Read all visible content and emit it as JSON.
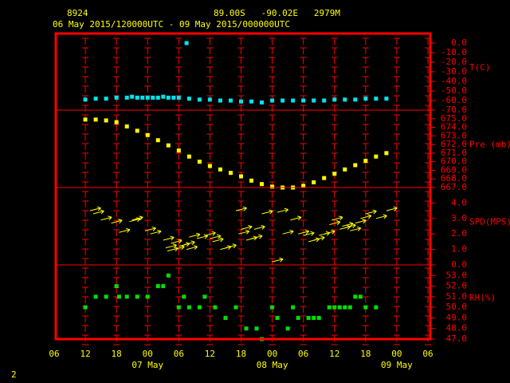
{
  "header": {
    "station": "8924",
    "location": "89.00S   -90.02E   2979M",
    "period": "06 May 2015/120000UTC - 09 May 2015/000000UTC",
    "page": "2"
  },
  "x_axis": {
    "xlim": [
      0,
      72
    ],
    "xticks": [
      {
        "value": 0,
        "label": "06"
      },
      {
        "value": 6,
        "label": "12"
      },
      {
        "value": 12,
        "label": "18"
      },
      {
        "value": 18,
        "label": "00"
      },
      {
        "value": 24,
        "label": "06"
      },
      {
        "value": 30,
        "label": "12"
      },
      {
        "value": 36,
        "label": "18"
      },
      {
        "value": 42,
        "label": "00"
      },
      {
        "value": 48,
        "label": "06"
      },
      {
        "value": 54,
        "label": "12"
      },
      {
        "value": 60,
        "label": "18"
      },
      {
        "value": 66,
        "label": "00"
      },
      {
        "value": 72,
        "label": "06"
      }
    ],
    "dates": [
      {
        "value": 18,
        "label": "07 May"
      },
      {
        "value": 42,
        "label": "08 May"
      },
      {
        "value": 66,
        "label": "09 May"
      }
    ]
  },
  "chart_data": [
    {
      "type": "scatter",
      "name": "T(C)",
      "color": "#00e5ee",
      "x": [
        6,
        8,
        10,
        12,
        14,
        15,
        16,
        17,
        18,
        19,
        20,
        21,
        22,
        23,
        24,
        25.5,
        26,
        28,
        30,
        32,
        34,
        36,
        38,
        40,
        42,
        44,
        46,
        48,
        50,
        52,
        54,
        56,
        58,
        60,
        62,
        64
      ],
      "values": [
        -59,
        -58,
        -58,
        -57,
        -57,
        -56,
        -57,
        -57,
        -57,
        -57,
        -57,
        -56,
        -57,
        -57,
        -57,
        0,
        -58,
        -59,
        -59,
        -60,
        -60,
        -61,
        -61,
        -62,
        -60,
        -60,
        -60,
        -60,
        -60,
        -60,
        -59,
        -59,
        -59,
        -58,
        -58,
        -58
      ],
      "ylim": [
        -70,
        10
      ],
      "yticks": [
        {
          "value": 0,
          "label": "0.0"
        },
        {
          "value": -10,
          "label": "-10.0"
        },
        {
          "value": -20,
          "label": "-20.0"
        },
        {
          "value": -30,
          "label": "-30.0"
        },
        {
          "value": -40,
          "label": "-40.0"
        },
        {
          "value": -50,
          "label": "-50.0"
        },
        {
          "value": -60,
          "label": "-60.0"
        },
        {
          "value": -70,
          "label": "-70.0"
        }
      ]
    },
    {
      "type": "scatter",
      "name": "Pre (mb)",
      "color": "#ffff00",
      "x": [
        6,
        8,
        10,
        12,
        14,
        16,
        18,
        20,
        22,
        24,
        26,
        28,
        30,
        32,
        34,
        36,
        38,
        40,
        42,
        44,
        46,
        48,
        50,
        52,
        54,
        56,
        58,
        60,
        62,
        64
      ],
      "values": [
        674.9,
        674.9,
        674.8,
        674.6,
        674.1,
        673.6,
        673.1,
        672.5,
        671.9,
        671.3,
        670.6,
        670.0,
        669.5,
        669.1,
        668.7,
        668.3,
        667.8,
        667.4,
        667.1,
        667.0,
        667.0,
        667.2,
        667.6,
        668.1,
        668.6,
        669.1,
        669.6,
        670.1,
        670.6,
        671.0
      ],
      "ylim": [
        667,
        676
      ],
      "yticks": [
        {
          "value": 675,
          "label": "675.0"
        },
        {
          "value": 674,
          "label": "674.0"
        },
        {
          "value": 673,
          "label": "673.0"
        },
        {
          "value": 672,
          "label": "672.0"
        },
        {
          "value": 671,
          "label": "671.0"
        },
        {
          "value": 670,
          "label": "670.0"
        },
        {
          "value": 669,
          "label": "669.0"
        },
        {
          "value": 668,
          "label": "668.0"
        },
        {
          "value": 667,
          "label": "667.0"
        }
      ]
    },
    {
      "type": "vector",
      "name": "SPD(MPS)",
      "color": "#ffff00",
      "x": [
        6.9,
        7.5,
        9,
        11,
        12.5,
        14.5,
        15,
        17.5,
        18.5,
        21,
        21.5,
        21.8,
        22.5,
        23,
        24,
        25,
        25.5,
        26,
        27.5,
        29,
        30,
        30.5,
        32,
        33,
        35,
        35.5,
        36,
        37,
        38,
        38.5,
        40,
        42,
        43,
        44,
        45.5,
        47,
        48,
        49,
        50,
        51,
        52,
        53,
        53.5,
        55,
        55.5,
        56,
        57,
        58,
        59,
        60,
        62,
        64
      ],
      "values": [
        3.5,
        3.3,
        2.9,
        2.7,
        2.1,
        2.8,
        2.9,
        2.2,
        2.0,
        1.6,
        1.1,
        0.9,
        1.4,
        1.0,
        1.2,
        1.3,
        1.0,
        1.8,
        1.7,
        1.9,
        1.7,
        1.5,
        1.0,
        1.1,
        3.5,
        2.0,
        2.3,
        1.6,
        1.7,
        2.3,
        3.3,
        0.2,
        3.4,
        2.0,
        2.9,
        2.0,
        1.9,
        1.5,
        1.6,
        1.9,
        2.0,
        2.6,
        2.9,
        2.3,
        2.5,
        2.4,
        2.2,
        2.7,
        3.0,
        3.3,
        3.0,
        3.5
      ],
      "ylim": [
        0,
        5
      ],
      "yticks": [
        {
          "value": 4,
          "label": "4.0"
        },
        {
          "value": 3,
          "label": "3.0"
        },
        {
          "value": 2,
          "label": "2.0"
        },
        {
          "value": 1,
          "label": "1.0"
        },
        {
          "value": 0,
          "label": "0.0"
        }
      ]
    },
    {
      "type": "scatter",
      "name": "RH(%)",
      "color": "#00e000",
      "x": [
        6,
        8,
        10,
        12,
        12.5,
        14,
        16,
        18,
        20,
        21,
        22,
        24,
        25,
        26,
        28,
        29,
        31,
        33,
        35,
        37,
        39,
        40,
        42,
        43,
        45,
        46,
        47,
        49,
        50,
        51,
        53,
        54,
        55,
        56,
        57,
        58,
        59,
        60,
        62
      ],
      "values": [
        50,
        51,
        51,
        52,
        51,
        51,
        51,
        51,
        52,
        52,
        53,
        50,
        51,
        50,
        50,
        51,
        50,
        49,
        50,
        48,
        48,
        47,
        50,
        49,
        48,
        50,
        49,
        49,
        49,
        49,
        50,
        50,
        50,
        50,
        50,
        51,
        51,
        50,
        50
      ],
      "ylim": [
        47,
        54
      ],
      "yticks": [
        {
          "value": 53,
          "label": "53.0"
        },
        {
          "value": 52,
          "label": "52.0"
        },
        {
          "value": 51,
          "label": "51.0"
        },
        {
          "value": 50,
          "label": "50.0"
        },
        {
          "value": 49,
          "label": "49.0"
        },
        {
          "value": 48,
          "label": "48.0"
        },
        {
          "value": 47,
          "label": "47.0"
        }
      ]
    }
  ]
}
